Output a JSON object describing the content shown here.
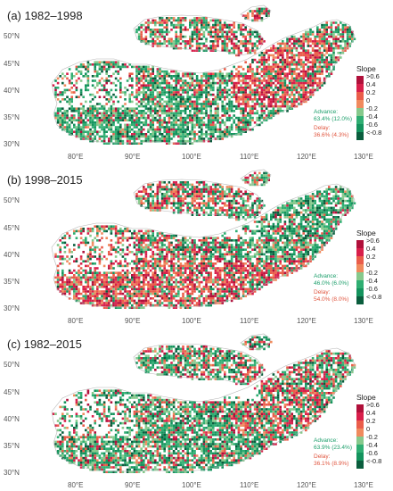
{
  "figure": {
    "lat_labels": [
      "50°N",
      "45°N",
      "40°N",
      "35°N",
      "30°N"
    ],
    "lon_labels": [
      "80°E",
      "90°E",
      "100°E",
      "110°E",
      "120°E",
      "130°E"
    ],
    "legend": {
      "title": "Slope",
      "ticks": [
        ">0.6",
        "0.4",
        "0.2",
        "0",
        "-0.2",
        "-0.4",
        "-0.6",
        "<-0.8"
      ],
      "colors": [
        "#b0103a",
        "#d81f4a",
        "#ea5d4a",
        "#f08a5d",
        "#86c98c",
        "#2fae72",
        "#14935d",
        "#0a5d3d"
      ]
    },
    "colors": {
      "advance": "#1b9e6a",
      "delay": "#e0553e",
      "border": "#b5b5b5"
    }
  },
  "panels": [
    {
      "title": "(a) 1982–1998",
      "advance_label": "Advance:",
      "advance_value": "63.4% (12.0%)",
      "delay_label": "Delay:",
      "delay_value": "36.6% (4.3%)",
      "dominant": "mixed-red-east"
    },
    {
      "title": "(b) 1998–2015",
      "advance_label": "Advance:",
      "advance_value": "46.0% (6.0%)",
      "delay_label": "Delay:",
      "delay_value": "54.0% (8.0%)",
      "dominant": "red-south"
    },
    {
      "title": "(c) 1982–2015",
      "advance_label": "Advance:",
      "advance_value": "63.9% (23.4%)",
      "delay_label": "Delay:",
      "delay_value": "36.1% (8.9%)",
      "dominant": "green"
    }
  ]
}
